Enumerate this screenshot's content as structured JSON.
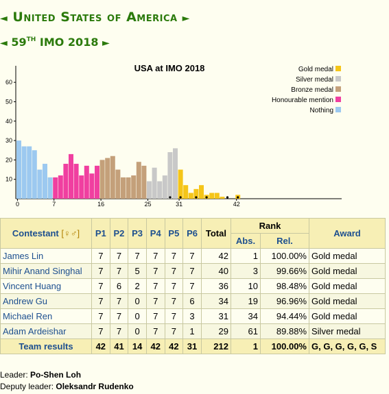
{
  "header": {
    "country_title": "United States of America",
    "olympiad_prefix": "59",
    "olympiad_suffix": "th",
    "olympiad_name": "IMO 2018",
    "arrow_right": "►",
    "arrow_left": "◄"
  },
  "chart_data": {
    "type": "bar",
    "title": "USA at IMO 2018",
    "xlabel": "",
    "ylabel": "",
    "ylim": [
      0,
      65
    ],
    "yticks": [
      10,
      20,
      30,
      40,
      50,
      60
    ],
    "xticks": [
      0,
      7,
      16,
      25,
      31,
      42
    ],
    "grid": false,
    "legend_position": "top-right",
    "legend": [
      {
        "name": "Gold medal",
        "color": "#f5c518"
      },
      {
        "name": "Silver medal",
        "color": "#c8c8c8"
      },
      {
        "name": "Bronze medal",
        "color": "#c4a07a"
      },
      {
        "name": "Honourable mention",
        "color": "#f03fa0"
      },
      {
        "name": "Nothing",
        "color": "#9cc9f0"
      }
    ],
    "x": [
      0,
      1,
      2,
      3,
      4,
      5,
      6,
      7,
      8,
      9,
      10,
      11,
      12,
      13,
      14,
      15,
      16,
      17,
      18,
      19,
      20,
      21,
      22,
      23,
      24,
      25,
      26,
      27,
      28,
      29,
      30,
      31,
      32,
      33,
      34,
      35,
      36,
      37,
      38,
      39,
      40,
      41,
      42
    ],
    "values": [
      30,
      27,
      27,
      25,
      15,
      18,
      11,
      11,
      12,
      18,
      23,
      18,
      12,
      17,
      13,
      17,
      20,
      21,
      22,
      15,
      11,
      11,
      12,
      19,
      17,
      9,
      16,
      9,
      12,
      24,
      26,
      15,
      7,
      3,
      5,
      7,
      2,
      3,
      3,
      1,
      0,
      0,
      2
    ],
    "categories_by_score": [
      "Nothing",
      "Nothing",
      "Nothing",
      "Nothing",
      "Nothing",
      "Nothing",
      "Nothing",
      "Honourable mention",
      "Honourable mention",
      "Honourable mention",
      "Honourable mention",
      "Honourable mention",
      "Honourable mention",
      "Honourable mention",
      "Honourable mention",
      "Honourable mention",
      "Bronze medal",
      "Bronze medal",
      "Bronze medal",
      "Bronze medal",
      "Bronze medal",
      "Bronze medal",
      "Bronze medal",
      "Bronze medal",
      "Bronze medal",
      "Silver medal",
      "Silver medal",
      "Silver medal",
      "Silver medal",
      "Silver medal",
      "Silver medal",
      "Gold medal",
      "Gold medal",
      "Gold medal",
      "Gold medal",
      "Gold medal",
      "Gold medal",
      "Gold medal",
      "Gold medal",
      "Gold medal",
      "Gold medal",
      "Gold medal",
      "Gold medal"
    ],
    "usa_scores_marked": [
      29,
      31,
      34,
      36,
      40,
      42
    ]
  },
  "table": {
    "headers": {
      "contestant": "Contestant",
      "gender_symbols": "[♀♂]",
      "p1": "P1",
      "p2": "P2",
      "p3": "P3",
      "p4": "P4",
      "p5": "P5",
      "p6": "P6",
      "total": "Total",
      "rank": "Rank",
      "abs": "Abs.",
      "rel": "Rel.",
      "award": "Award"
    },
    "rows": [
      {
        "name": "James Lin",
        "p": [
          "7",
          "7",
          "7",
          "7",
          "7",
          "7"
        ],
        "total": "42",
        "abs": "1",
        "rel": "100.00%",
        "award": "Gold medal"
      },
      {
        "name": "Mihir Anand Singhal",
        "p": [
          "7",
          "7",
          "5",
          "7",
          "7",
          "7"
        ],
        "total": "40",
        "abs": "3",
        "rel": "99.66%",
        "award": "Gold medal"
      },
      {
        "name": "Vincent Huang",
        "p": [
          "7",
          "6",
          "2",
          "7",
          "7",
          "7"
        ],
        "total": "36",
        "abs": "10",
        "rel": "98.48%",
        "award": "Gold medal"
      },
      {
        "name": "Andrew Gu",
        "p": [
          "7",
          "7",
          "0",
          "7",
          "7",
          "6"
        ],
        "total": "34",
        "abs": "19",
        "rel": "96.96%",
        "award": "Gold medal"
      },
      {
        "name": "Michael Ren",
        "p": [
          "7",
          "7",
          "0",
          "7",
          "7",
          "3"
        ],
        "total": "31",
        "abs": "34",
        "rel": "94.44%",
        "award": "Gold medal"
      },
      {
        "name": "Adam Ardeishar",
        "p": [
          "7",
          "7",
          "0",
          "7",
          "7",
          "1"
        ],
        "total": "29",
        "abs": "61",
        "rel": "89.88%",
        "award": "Silver medal"
      }
    ],
    "team": {
      "label": "Team results",
      "p": [
        "42",
        "41",
        "14",
        "42",
        "42",
        "31"
      ],
      "total": "212",
      "abs": "1",
      "rel": "100.00%",
      "award": "G, G, G, G, G, S"
    }
  },
  "leaders": {
    "leader_label": "Leader:",
    "leader_name": "Po-Shen Loh",
    "deputy_label": "Deputy leader:",
    "deputy_name": "Oleksandr Rudenko"
  }
}
